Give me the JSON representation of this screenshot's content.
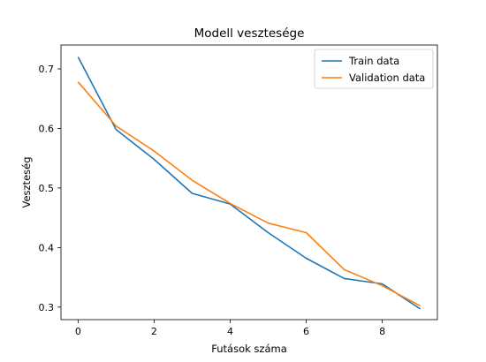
{
  "chart_data": {
    "type": "line",
    "title": "Modell vesztesége",
    "xlabel": "Futások száma",
    "ylabel": "Veszteség",
    "x": [
      0,
      1,
      2,
      3,
      4,
      5,
      6,
      7,
      8,
      9
    ],
    "xlim": [
      -0.45,
      9.45
    ],
    "ylim": [
      0.279,
      0.74
    ],
    "xticks": [
      0,
      2,
      4,
      6,
      8
    ],
    "yticks": [
      0.3,
      0.4,
      0.5,
      0.6,
      0.7
    ],
    "grid": false,
    "legend_position": "top-right",
    "series": [
      {
        "name": "Train data",
        "color": "#1f77b4",
        "values": [
          0.72,
          0.598,
          0.548,
          0.491,
          0.473,
          0.425,
          0.382,
          0.348,
          0.339,
          0.297
        ]
      },
      {
        "name": "Validation data",
        "color": "#ff7f0e",
        "values": [
          0.678,
          0.604,
          0.562,
          0.513,
          0.474,
          0.441,
          0.425,
          0.363,
          0.336,
          0.302
        ]
      }
    ]
  }
}
